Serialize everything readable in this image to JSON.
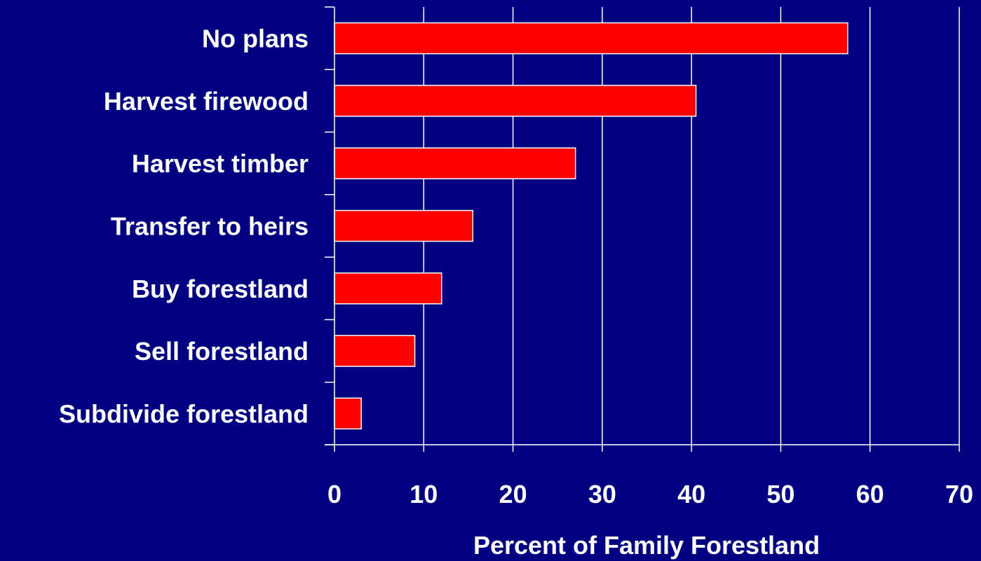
{
  "chart_data": {
    "type": "bar",
    "orientation": "horizontal",
    "title": "",
    "xlabel": "Percent of Family Forestland",
    "ylabel": "",
    "categories": [
      "No plans",
      "Harvest firewood",
      "Harvest timber",
      "Transfer to heirs",
      "Buy forestland",
      "Sell forestland",
      "Subdivide forestland"
    ],
    "values": [
      57.5,
      40.5,
      27,
      15.5,
      12,
      9,
      3
    ],
    "xlim": [
      0,
      70
    ],
    "xticks": [
      0,
      10,
      20,
      30,
      40,
      50,
      60,
      70
    ],
    "xtick_labels": [
      "0",
      "10",
      "20",
      "30",
      "40",
      "50",
      "60",
      "70"
    ],
    "grid": "vertical",
    "legend": "none"
  },
  "colors": {
    "background": "#000080",
    "bar_fill": "#ff0000",
    "bar_stroke": "#ffffff",
    "gridline": "#ffffff",
    "text": "#ffffff"
  }
}
